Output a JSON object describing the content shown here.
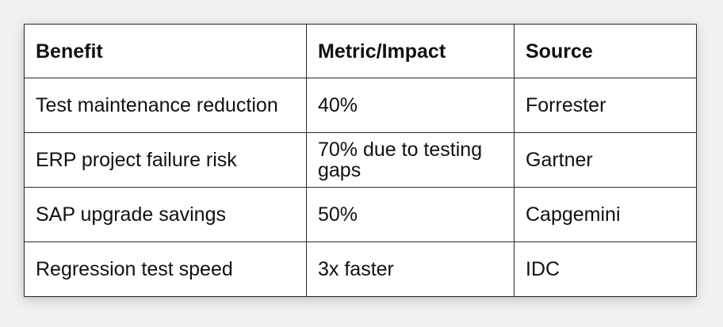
{
  "table": {
    "headers": [
      "Benefit",
      "Metric/Impact",
      "Source"
    ],
    "rows": [
      {
        "benefit": "Test maintenance reduction",
        "metric": "40%",
        "source": "Forrester"
      },
      {
        "benefit": "ERP project failure risk",
        "metric": "70% due to testing gaps",
        "source": "Gartner"
      },
      {
        "benefit": "SAP upgrade savings",
        "metric": "50%",
        "source": "Capgemini"
      },
      {
        "benefit": "Regression test speed",
        "metric": "3x faster",
        "source": "IDC"
      }
    ]
  }
}
